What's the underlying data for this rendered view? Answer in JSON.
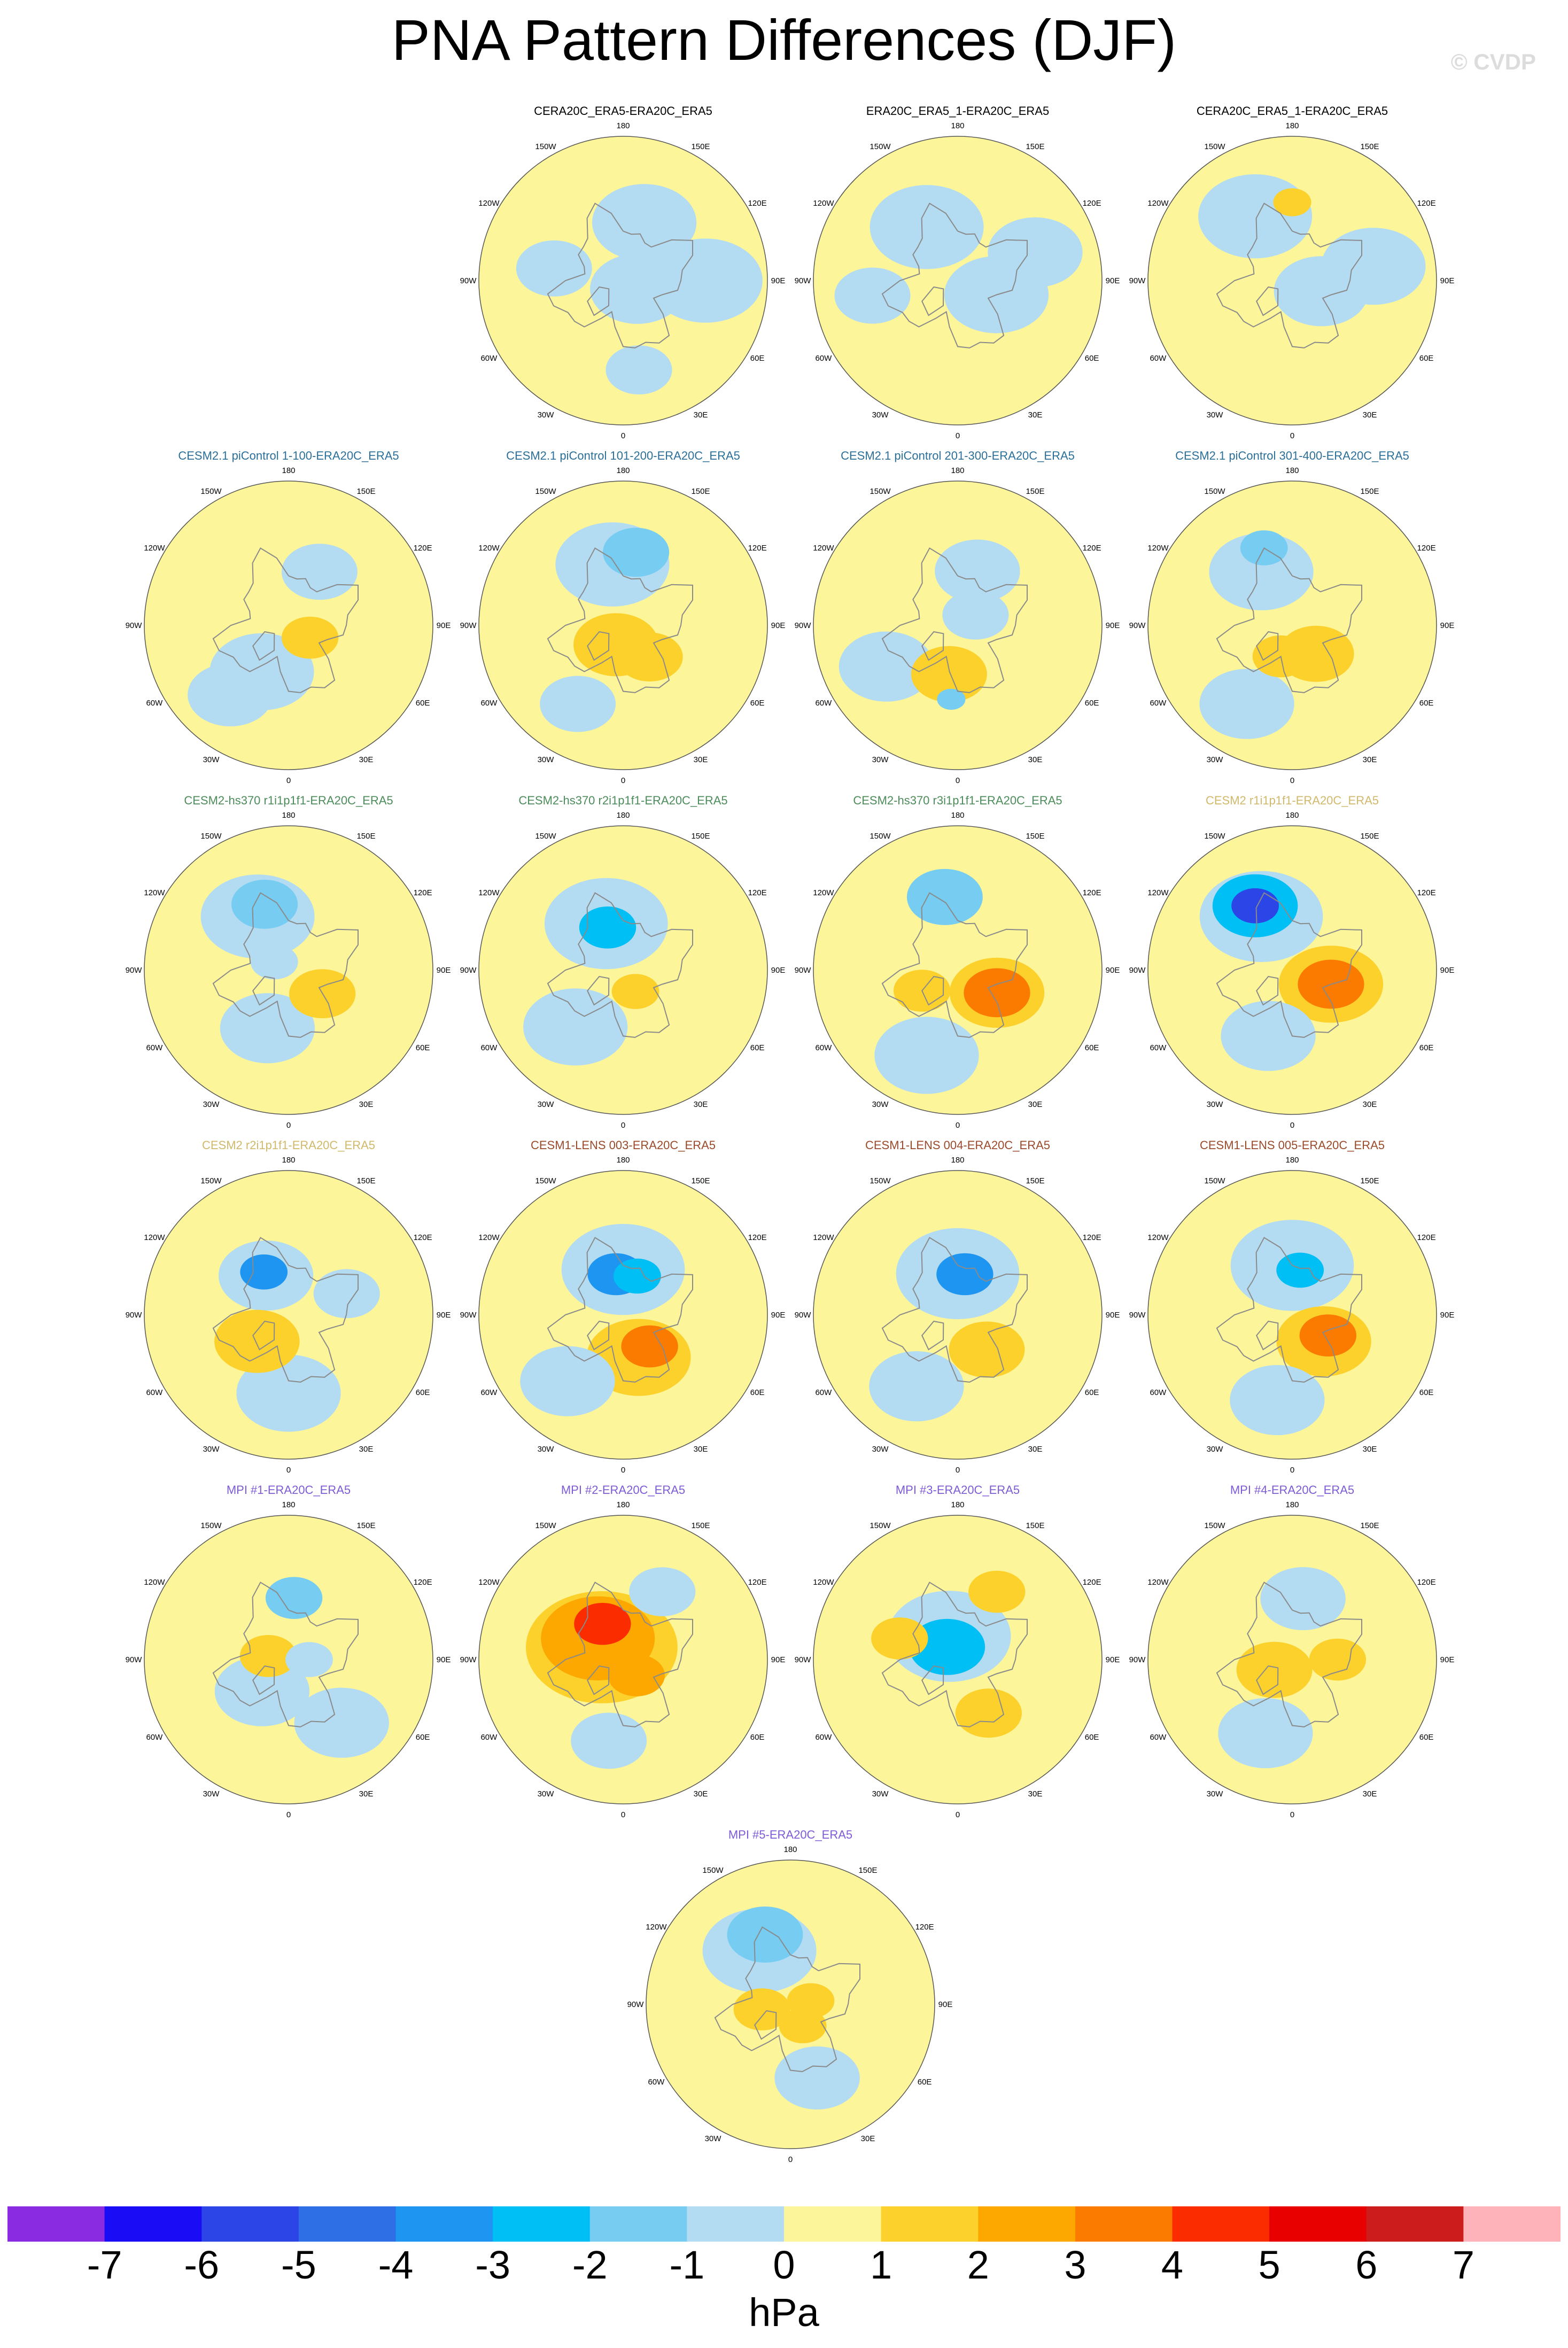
{
  "title": "PNA Pattern Differences (DJF)",
  "watermark": "© CVDP",
  "colors": {
    "title_black": "#000000",
    "title_blue": "#2a6f9a",
    "title_green": "#4c8c5a",
    "title_khaki": "#d1b86a",
    "title_brown": "#9a4a2a",
    "title_purple": "#7d5ad6",
    "coast": "#8a8a8a"
  },
  "lon_labels": [
    "180",
    "150E",
    "120E",
    "90E",
    "60E",
    "30E",
    "0",
    "30W",
    "60W",
    "90W",
    "120W",
    "150W"
  ],
  "chart_data": {
    "type": "heatmap",
    "projection": "north polar stereographic",
    "season": "DJF",
    "units": "hPa",
    "colorbar": {
      "tick_labels": [
        "-7",
        "-6",
        "-5",
        "-4",
        "-3",
        "-2",
        "-1",
        "0",
        "1",
        "2",
        "3",
        "4",
        "5",
        "6",
        "7"
      ],
      "bins": [
        {
          "range": "< -7",
          "color": "#8a2be2"
        },
        {
          "range": "-7 to -6",
          "color": "#1a0df5"
        },
        {
          "range": "-6 to -5",
          "color": "#2b45e6"
        },
        {
          "range": "-5 to -4",
          "color": "#2f6fe6"
        },
        {
          "range": "-4 to -3",
          "color": "#1e95f0"
        },
        {
          "range": "-3 to -2",
          "color": "#00bff5"
        },
        {
          "range": "-2 to -1",
          "color": "#77ccf2"
        },
        {
          "range": "-1 to 0",
          "color": "#b3dcf2"
        },
        {
          "range": "0 to 1",
          "color": "#fcf59a"
        },
        {
          "range": "1 to 2",
          "color": "#fdd12c"
        },
        {
          "range": "2 to 3",
          "color": "#fca800"
        },
        {
          "range": "3 to 4",
          "color": "#fb7a00"
        },
        {
          "range": "4 to 5",
          "color": "#fb2c00"
        },
        {
          "range": "5 to 6",
          "color": "#e80000"
        },
        {
          "range": "6 to 7",
          "color": "#cc1c1c"
        },
        {
          "range": "> 7",
          "color": "#fdb3b9"
        }
      ]
    },
    "panels": [
      {
        "title": "CERA20C_ERA5-ERA20C_ERA5",
        "title_color": "black",
        "features": [
          {
            "dlat": 30,
            "lon": 160,
            "r": 22,
            "level": -0.5
          },
          {
            "dlat": 8,
            "lon": 60,
            "r": 20,
            "level": -0.5
          },
          {
            "dlat": 40,
            "lon": 90,
            "r": 24,
            "level": -0.5
          },
          {
            "dlat": 34,
            "lon": -100,
            "r": 16,
            "level": -0.5
          },
          {
            "dlat": 44,
            "lon": 10,
            "r": 14,
            "level": -0.5
          }
        ]
      },
      {
        "title": "ERA20C_ERA5_1-ERA20C_ERA5",
        "title_color": "black",
        "features": [
          {
            "dlat": 30,
            "lon": -150,
            "r": 24,
            "level": -0.5
          },
          {
            "dlat": 20,
            "lon": 70,
            "r": 22,
            "level": -0.5
          },
          {
            "dlat": 42,
            "lon": -80,
            "r": 16,
            "level": -0.5
          },
          {
            "dlat": 40,
            "lon": 110,
            "r": 20,
            "level": -0.5
          }
        ]
      },
      {
        "title": "CERA20C_ERA5_1-ERA20C_ERA5",
        "title_color": "black",
        "features": [
          {
            "dlat": 36,
            "lon": -150,
            "r": 24,
            "level": -0.5
          },
          {
            "dlat": 15,
            "lon": 70,
            "r": 20,
            "level": -0.5
          },
          {
            "dlat": 40,
            "lon": 100,
            "r": 22,
            "level": -0.5
          },
          {
            "dlat": 38,
            "lon": 180,
            "r": 8,
            "level": 1.5
          }
        ]
      },
      {
        "title": "CESM2.1 piControl 1-100-ERA20C_ERA5",
        "title_color": "blue",
        "features": [
          {
            "dlat": 12,
            "lon": 60,
            "r": 12,
            "level": 1.5
          },
          {
            "dlat": 26,
            "lon": -30,
            "r": 22,
            "level": -0.5
          },
          {
            "dlat": 30,
            "lon": 150,
            "r": 16,
            "level": -0.5
          },
          {
            "dlat": 44,
            "lon": -40,
            "r": 18,
            "level": -0.5
          }
        ]
      },
      {
        "title": "CESM2.1 piControl 101-200-ERA20C_ERA5",
        "title_color": "blue",
        "features": [
          {
            "dlat": 36,
            "lon": 170,
            "r": 14,
            "level": -1.5
          },
          {
            "dlat": 30,
            "lon": -170,
            "r": 24,
            "level": -0.5
          },
          {
            "dlat": 10,
            "lon": -20,
            "r": 18,
            "level": 1.5
          },
          {
            "dlat": 20,
            "lon": 40,
            "r": 14,
            "level": 1.5
          },
          {
            "dlat": 44,
            "lon": -30,
            "r": 16,
            "level": -0.5
          }
        ]
      },
      {
        "title": "CESM2.1 piControl 201-300-ERA20C_ERA5",
        "title_color": "blue",
        "features": [
          {
            "dlat": 24,
            "lon": -10,
            "r": 16,
            "level": 1.5
          },
          {
            "dlat": 10,
            "lon": 120,
            "r": 14,
            "level": -0.5
          },
          {
            "dlat": 40,
            "lon": -60,
            "r": 20,
            "level": -0.5
          },
          {
            "dlat": 36,
            "lon": -5,
            "r": 6,
            "level": -1.5
          },
          {
            "dlat": 28,
            "lon": 160,
            "r": 18,
            "level": -0.5
          }
        ]
      },
      {
        "title": "CESM2.1 piControl 301-400-ERA20C_ERA5",
        "title_color": "blue",
        "features": [
          {
            "dlat": 40,
            "lon": -160,
            "r": 10,
            "level": -1.5
          },
          {
            "dlat": 30,
            "lon": -150,
            "r": 22,
            "level": -0.5
          },
          {
            "dlat": 18,
            "lon": 40,
            "r": 16,
            "level": 1.5
          },
          {
            "dlat": 16,
            "lon": -20,
            "r": 12,
            "level": 1.5
          },
          {
            "dlat": 44,
            "lon": -30,
            "r": 20,
            "level": -0.5
          }
        ]
      },
      {
        "title": "CESM2-hs370 r1i1p1f1-ERA20C_ERA5",
        "title_color": "green",
        "features": [
          {
            "dlat": 34,
            "lon": -160,
            "r": 14,
            "level": -1.5
          },
          {
            "dlat": 30,
            "lon": -150,
            "r": 24,
            "level": -0.5
          },
          {
            "dlat": 20,
            "lon": 55,
            "r": 14,
            "level": 1.5
          },
          {
            "dlat": 30,
            "lon": -20,
            "r": 20,
            "level": -0.5
          },
          {
            "dlat": 8,
            "lon": -120,
            "r": 10,
            "level": -0.5
          }
        ]
      },
      {
        "title": "CESM2-hs370 r2i1p1f1-ERA20C_ERA5",
        "title_color": "green",
        "features": [
          {
            "dlat": 22,
            "lon": -160,
            "r": 12,
            "level": -2.5
          },
          {
            "dlat": 24,
            "lon": -160,
            "r": 26,
            "level": -0.5
          },
          {
            "dlat": 36,
            "lon": -40,
            "r": 22,
            "level": -0.5
          },
          {
            "dlat": 12,
            "lon": 30,
            "r": 10,
            "level": 1.5
          }
        ]
      },
      {
        "title": "CESM2-hs370 r3i1p1f1-ERA20C_ERA5",
        "title_color": "green",
        "features": [
          {
            "dlat": 36,
            "lon": -170,
            "r": 16,
            "level": -1.5
          },
          {
            "dlat": 22,
            "lon": 60,
            "r": 14,
            "level": 3.5
          },
          {
            "dlat": 22,
            "lon": 60,
            "r": 20,
            "level": 1.5
          },
          {
            "dlat": 20,
            "lon": -60,
            "r": 12,
            "level": 1.5
          },
          {
            "dlat": 44,
            "lon": -20,
            "r": 22,
            "level": -0.5
          }
        ]
      },
      {
        "title": "CESM2 r1i1p1f1-ERA20C_ERA5",
        "title_color": "khaki",
        "features": [
          {
            "dlat": 36,
            "lon": -150,
            "r": 10,
            "level": -5.5
          },
          {
            "dlat": 36,
            "lon": -150,
            "r": 18,
            "level": -2.5
          },
          {
            "dlat": 30,
            "lon": -150,
            "r": 26,
            "level": -0.5
          },
          {
            "dlat": 20,
            "lon": 70,
            "r": 14,
            "level": 3.5
          },
          {
            "dlat": 20,
            "lon": 70,
            "r": 22,
            "level": 1.5
          },
          {
            "dlat": 34,
            "lon": -20,
            "r": 20,
            "level": -0.5
          }
        ]
      },
      {
        "title": "CESM2 r2i1p1f1-ERA20C_ERA5",
        "title_color": "khaki",
        "features": [
          {
            "dlat": 24,
            "lon": -150,
            "r": 10,
            "level": -3.5
          },
          {
            "dlat": 22,
            "lon": -150,
            "r": 20,
            "level": -0.5
          },
          {
            "dlat": 20,
            "lon": -50,
            "r": 18,
            "level": 1.5
          },
          {
            "dlat": 38,
            "lon": 0,
            "r": 22,
            "level": -0.5
          },
          {
            "dlat": 30,
            "lon": 110,
            "r": 14,
            "level": -0.5
          }
        ]
      },
      {
        "title": "CESM1-LENS 003-ERA20C_ERA5",
        "title_color": "brown",
        "features": [
          {
            "dlat": 20,
            "lon": -170,
            "r": 12,
            "level": -3.5
          },
          {
            "dlat": 20,
            "lon": 160,
            "r": 10,
            "level": -2.5
          },
          {
            "dlat": 22,
            "lon": 180,
            "r": 26,
            "level": -0.5
          },
          {
            "dlat": 20,
            "lon": 40,
            "r": 12,
            "level": 3.5
          },
          {
            "dlat": 22,
            "lon": 20,
            "r": 22,
            "level": 1.5
          },
          {
            "dlat": 42,
            "lon": -40,
            "r": 20,
            "level": -0.5
          }
        ]
      },
      {
        "title": "CESM1-LENS 004-ERA20C_ERA5",
        "title_color": "brown",
        "features": [
          {
            "dlat": 20,
            "lon": 170,
            "r": 12,
            "level": -3.5
          },
          {
            "dlat": 20,
            "lon": 180,
            "r": 26,
            "level": -0.5
          },
          {
            "dlat": 22,
            "lon": 40,
            "r": 16,
            "level": 1.5
          },
          {
            "dlat": 40,
            "lon": -30,
            "r": 20,
            "level": -0.5
          }
        ]
      },
      {
        "title": "CESM1-LENS 005-ERA20C_ERA5",
        "title_color": "brown",
        "features": [
          {
            "dlat": 22,
            "lon": 170,
            "r": 10,
            "level": -2.5
          },
          {
            "dlat": 24,
            "lon": 180,
            "r": 26,
            "level": -0.5
          },
          {
            "dlat": 20,
            "lon": 60,
            "r": 12,
            "level": 3.5
          },
          {
            "dlat": 20,
            "lon": 50,
            "r": 20,
            "level": 1.5
          },
          {
            "dlat": 42,
            "lon": -10,
            "r": 20,
            "level": -0.5
          }
        ]
      },
      {
        "title": "MPI #1-ERA20C_ERA5",
        "title_color": "purple",
        "features": [
          {
            "dlat": 30,
            "lon": 175,
            "r": 12,
            "level": -1.5
          },
          {
            "dlat": 10,
            "lon": -100,
            "r": 12,
            "level": 1.5
          },
          {
            "dlat": 20,
            "lon": -40,
            "r": 20,
            "level": -0.5
          },
          {
            "dlat": 40,
            "lon": 40,
            "r": 20,
            "level": -0.5
          },
          {
            "dlat": 10,
            "lon": 90,
            "r": 10,
            "level": -0.5
          }
        ]
      },
      {
        "title": "MPI #2-ERA20C_ERA5",
        "title_color": "purple",
        "features": [
          {
            "dlat": 20,
            "lon": -150,
            "r": 12,
            "level": 4.5
          },
          {
            "dlat": 16,
            "lon": -130,
            "r": 24,
            "level": 2.5
          },
          {
            "dlat": 12,
            "lon": -120,
            "r": 32,
            "level": 1.5
          },
          {
            "dlat": 10,
            "lon": 40,
            "r": 12,
            "level": 2.5
          },
          {
            "dlat": 40,
            "lon": -10,
            "r": 16,
            "level": -0.5
          },
          {
            "dlat": 38,
            "lon": 150,
            "r": 14,
            "level": -0.5
          }
        ]
      },
      {
        "title": "MPI #3-ERA20C_ERA5",
        "title_color": "purple",
        "features": [
          {
            "dlat": 8,
            "lon": -140,
            "r": 16,
            "level": -2.5
          },
          {
            "dlat": 12,
            "lon": -160,
            "r": 26,
            "level": -0.5
          },
          {
            "dlat": 30,
            "lon": 30,
            "r": 14,
            "level": 1.5
          },
          {
            "dlat": 30,
            "lon": -110,
            "r": 12,
            "level": 1.5
          },
          {
            "dlat": 38,
            "lon": 150,
            "r": 12,
            "level": 1.5
          }
        ]
      },
      {
        "title": "MPI #4-ERA20C_ERA5",
        "title_color": "purple",
        "features": [
          {
            "dlat": 10,
            "lon": -60,
            "r": 16,
            "level": 1.5
          },
          {
            "dlat": 22,
            "lon": 90,
            "r": 12,
            "level": 1.5
          },
          {
            "dlat": 38,
            "lon": -20,
            "r": 20,
            "level": -0.5
          },
          {
            "dlat": 30,
            "lon": 170,
            "r": 18,
            "level": -0.5
          }
        ]
      },
      {
        "title": "MPI #5-ERA20C_ERA5",
        "title_color": "purple",
        "features": [
          {
            "dlat": 36,
            "lon": -160,
            "r": 16,
            "level": -1.5
          },
          {
            "dlat": 30,
            "lon": -150,
            "r": 24,
            "level": -0.5
          },
          {
            "dlat": 14,
            "lon": -80,
            "r": 12,
            "level": 1.5
          },
          {
            "dlat": 12,
            "lon": 30,
            "r": 10,
            "level": 1.5
          },
          {
            "dlat": 38,
            "lon": 20,
            "r": 18,
            "level": -0.5
          },
          {
            "dlat": 10,
            "lon": 100,
            "r": 10,
            "level": 1.5
          }
        ]
      }
    ]
  }
}
